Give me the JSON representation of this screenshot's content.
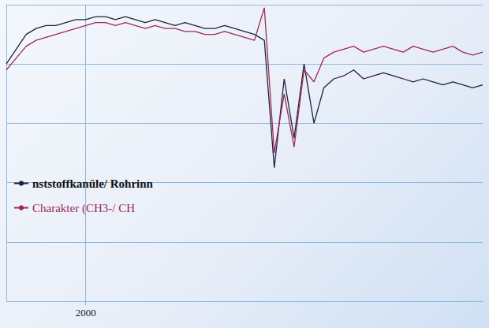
{
  "chart_data": {
    "type": "line",
    "x": [
      2200,
      2175,
      2150,
      2125,
      2100,
      2075,
      2050,
      2025,
      2000,
      1975,
      1950,
      1925,
      1900,
      1875,
      1850,
      1825,
      1800,
      1775,
      1750,
      1725,
      1700,
      1675,
      1650,
      1625,
      1600,
      1575,
      1550,
      1525,
      1500,
      1475,
      1450,
      1425,
      1400,
      1375,
      1350,
      1325,
      1300,
      1275,
      1250,
      1225,
      1200,
      1175,
      1150,
      1125,
      1100,
      1075,
      1050,
      1025,
      1000
    ],
    "series": [
      {
        "name": "nststoffkanüle/ Rohrinn",
        "color": "#1c2340",
        "values": [
          80,
          85,
          90,
          92,
          93,
          93,
          94,
          95,
          95,
          96,
          96,
          95,
          96,
          95,
          94,
          95,
          94,
          93,
          94,
          93,
          92,
          92,
          93,
          92,
          91,
          90,
          88,
          45,
          75,
          55,
          80,
          60,
          72,
          75,
          76,
          78,
          75,
          76,
          77,
          76,
          75,
          74,
          75,
          74,
          73,
          74,
          73,
          72,
          73
        ]
      },
      {
        "name": "Charakter (CH3-/ CH",
        "color": "#a0285a",
        "values": [
          78,
          82,
          86,
          88,
          89,
          90,
          91,
          92,
          93,
          94,
          94,
          93,
          94,
          93,
          92,
          93,
          92,
          92,
          91,
          91,
          90,
          90,
          91,
          90,
          89,
          88,
          99,
          50,
          70,
          52,
          78,
          74,
          82,
          84,
          85,
          86,
          84,
          85,
          86,
          85,
          84,
          86,
          85,
          84,
          85,
          86,
          84,
          83,
          84
        ]
      }
    ],
    "xlim": [
      1000,
      2200
    ],
    "xticks": [
      2000
    ],
    "ylim": [
      0,
      100
    ],
    "yticks": [
      0,
      20,
      40,
      60,
      80,
      100
    ],
    "grid": true,
    "tick_labels": "x",
    "legend": "left"
  }
}
